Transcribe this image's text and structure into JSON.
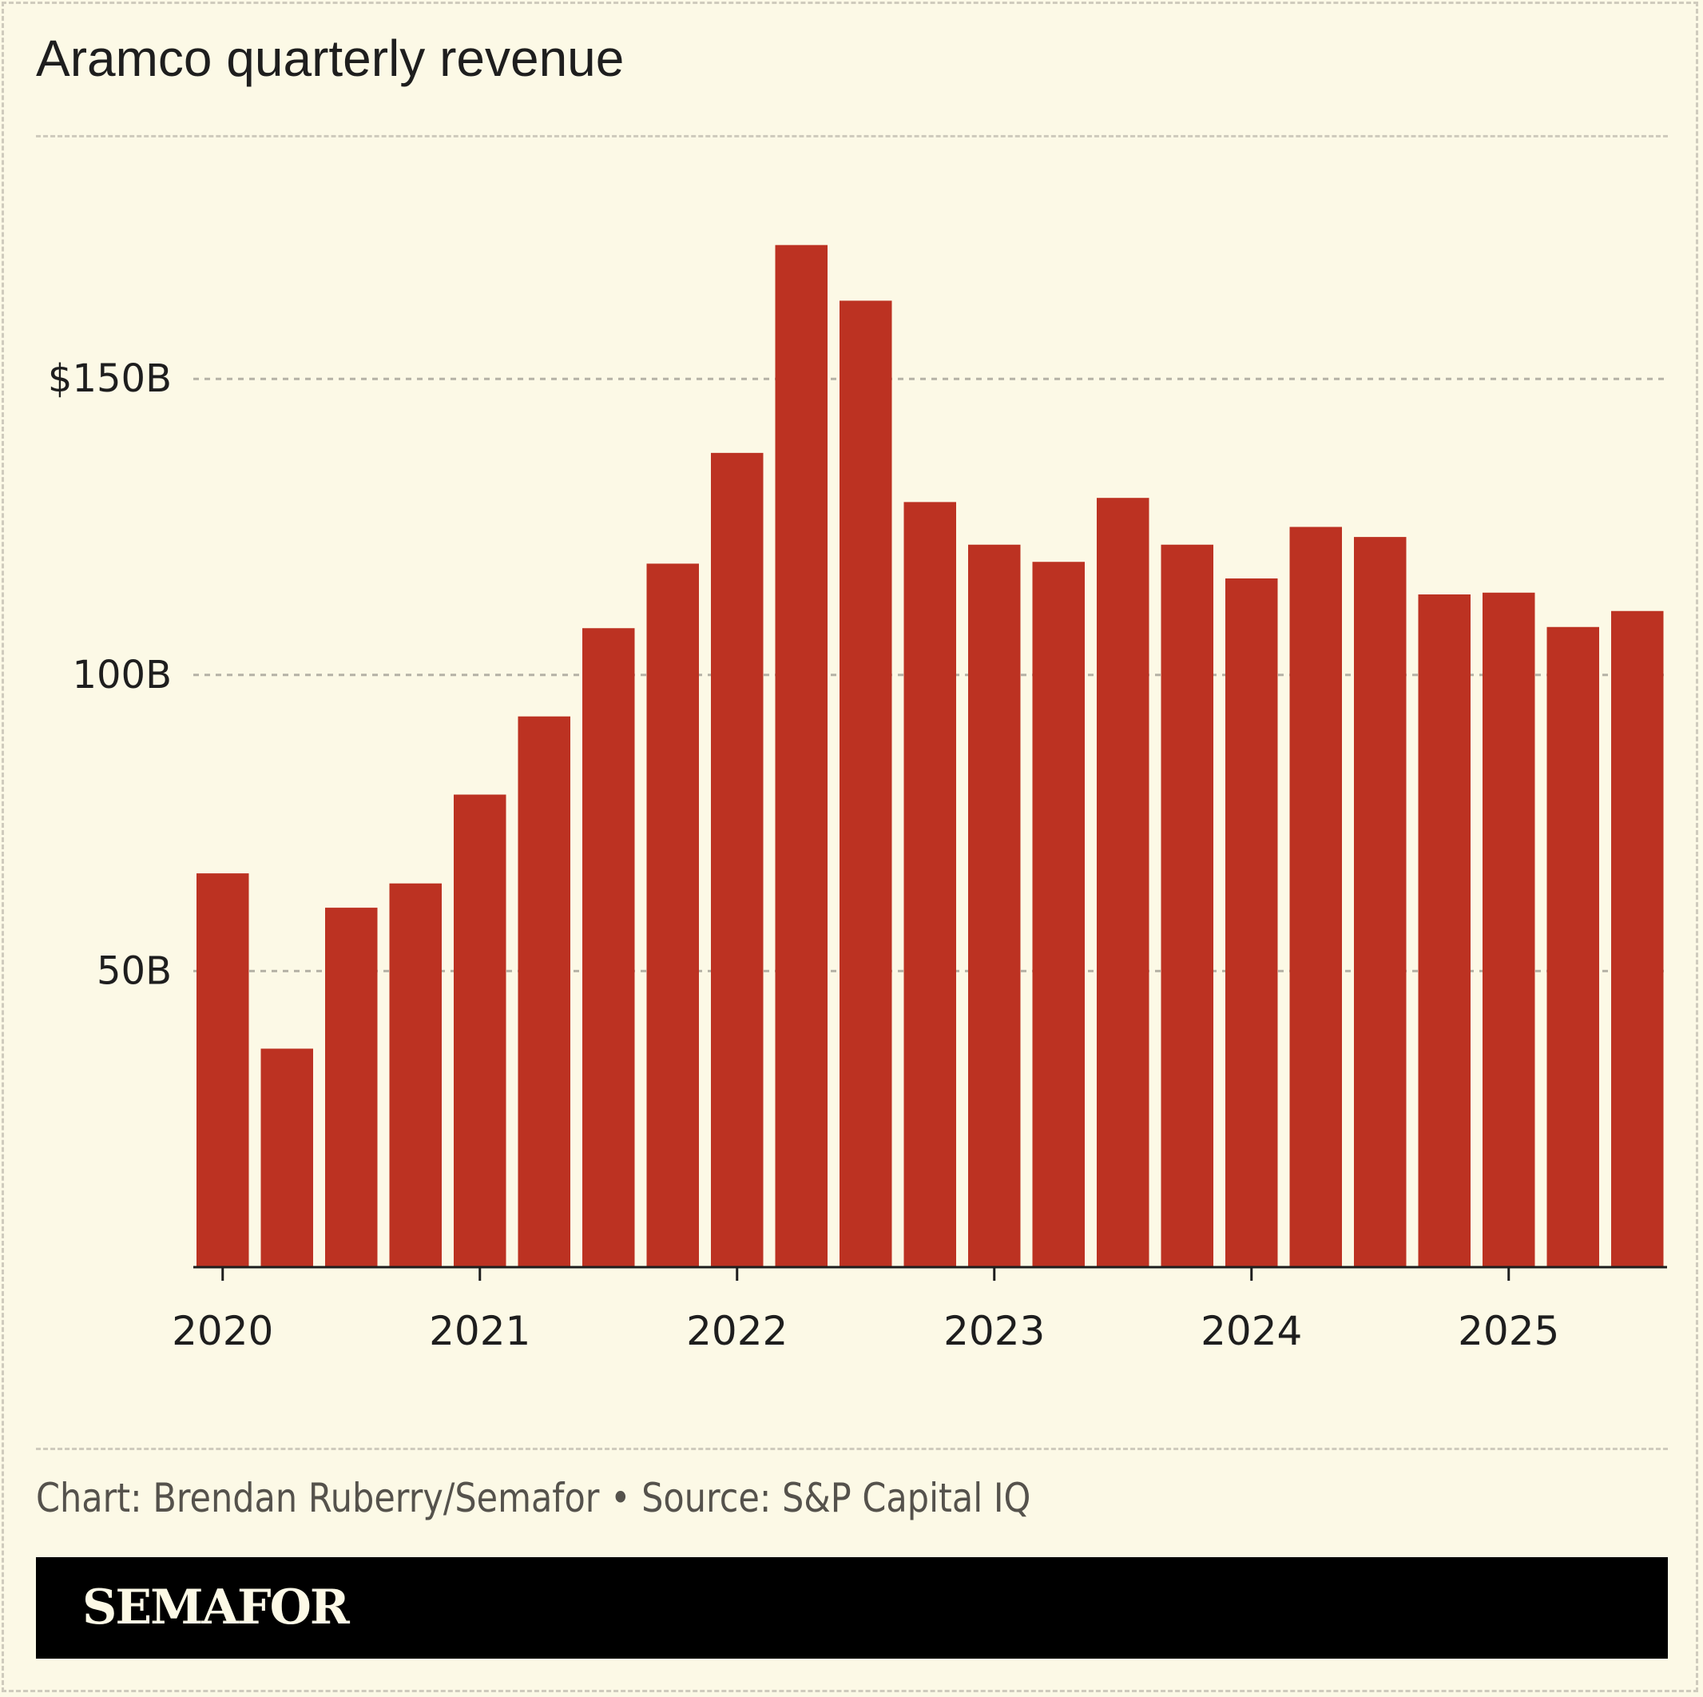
{
  "header": {
    "title": "Aramco quarterly revenue"
  },
  "footer": {
    "source": "Chart: Brendan Ruberry/Semafor • Source: S&P Capital IQ",
    "brand": "SEMAFOR"
  },
  "colors": {
    "background": "#fcf9e6",
    "bar": "#bc3222",
    "axis": "#1e1e1e",
    "grid": "#b5b2a6"
  },
  "chart_data": {
    "type": "bar",
    "title": "Aramco quarterly revenue",
    "xlabel": "",
    "ylabel": "",
    "ylim": [
      0,
      180
    ],
    "grid": true,
    "yticks": [
      {
        "value": 50,
        "label": "50B"
      },
      {
        "value": 100,
        "label": "100B"
      },
      {
        "value": 150,
        "label": "$150B"
      }
    ],
    "xticks": [
      {
        "category": "2020-Q1",
        "label": "2020"
      },
      {
        "category": "2021-Q1",
        "label": "2021"
      },
      {
        "category": "2022-Q1",
        "label": "2022"
      },
      {
        "category": "2023-Q1",
        "label": "2023"
      },
      {
        "category": "2024-Q1",
        "label": "2024"
      },
      {
        "category": "2025-Q1",
        "label": "2025"
      }
    ],
    "categories": [
      "2020-Q1",
      "2020-Q2",
      "2020-Q3",
      "2020-Q4",
      "2021-Q1",
      "2021-Q2",
      "2021-Q3",
      "2021-Q4",
      "2022-Q1",
      "2022-Q2",
      "2022-Q3",
      "2022-Q4",
      "2023-Q1",
      "2023-Q2",
      "2023-Q3",
      "2023-Q4",
      "2024-Q1",
      "2024-Q2",
      "2024-Q3",
      "2024-Q4",
      "2025-Q1",
      "2025-Q2",
      "2025-Q3"
    ],
    "values": [
      66.5,
      36.9,
      60.7,
      64.8,
      79.8,
      93.0,
      107.9,
      118.8,
      137.5,
      172.6,
      163.2,
      129.2,
      122.0,
      119.1,
      129.9,
      122.0,
      116.3,
      125.0,
      123.3,
      113.6,
      113.9,
      108.1,
      110.8
    ]
  }
}
